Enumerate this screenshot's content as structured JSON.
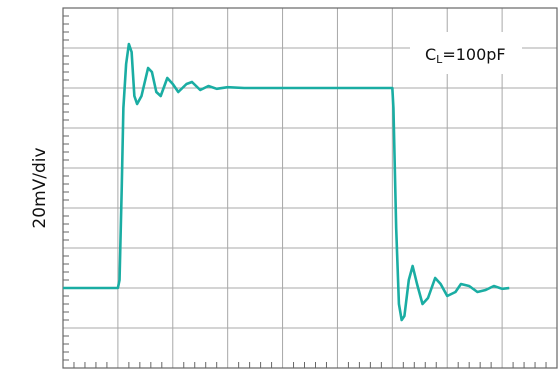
{
  "chart_data": {
    "type": "line",
    "y_label": "20mV/div",
    "annotation": {
      "main": "C",
      "subscript": "L",
      "rest": "=100pF"
    },
    "xlim": [
      0,
      9
    ],
    "ylim": [
      0,
      9
    ],
    "xticks": [
      0,
      1,
      2,
      3,
      4,
      5,
      6,
      7,
      8,
      9
    ],
    "yticks": [
      0,
      1,
      2,
      3,
      4,
      5,
      6,
      7,
      8,
      9
    ],
    "minor_divisions": 5,
    "grid": true,
    "series": [
      {
        "color": "#1aada3",
        "x": [
          0,
          1.0,
          1.03,
          1.07,
          1.1,
          1.15,
          1.2,
          1.25,
          1.3,
          1.35,
          1.43,
          1.55,
          1.62,
          1.7,
          1.78,
          1.9,
          2.0,
          2.1,
          2.25,
          2.35,
          2.5,
          2.65,
          2.8,
          3.0,
          3.3,
          6.0,
          6.02,
          6.07,
          6.12,
          6.17,
          6.22,
          6.3,
          6.37,
          6.45,
          6.55,
          6.65,
          6.78,
          6.88,
          7.0,
          7.15,
          7.25,
          7.4,
          7.55,
          7.7,
          7.85,
          8.0,
          8.13
        ],
        "values": [
          2,
          2,
          2.2,
          4.5,
          6.5,
          7.6,
          8.1,
          7.9,
          6.8,
          6.6,
          6.8,
          7.5,
          7.4,
          6.9,
          6.8,
          7.25,
          7.1,
          6.9,
          7.1,
          7.15,
          6.95,
          7.05,
          6.98,
          7.02,
          7,
          7,
          6.5,
          3.5,
          1.6,
          1.2,
          1.3,
          2.2,
          2.55,
          2.1,
          1.6,
          1.75,
          2.25,
          2.1,
          1.8,
          1.9,
          2.1,
          2.05,
          1.9,
          1.95,
          2.05,
          1.98,
          2.0
        ]
      }
    ]
  }
}
